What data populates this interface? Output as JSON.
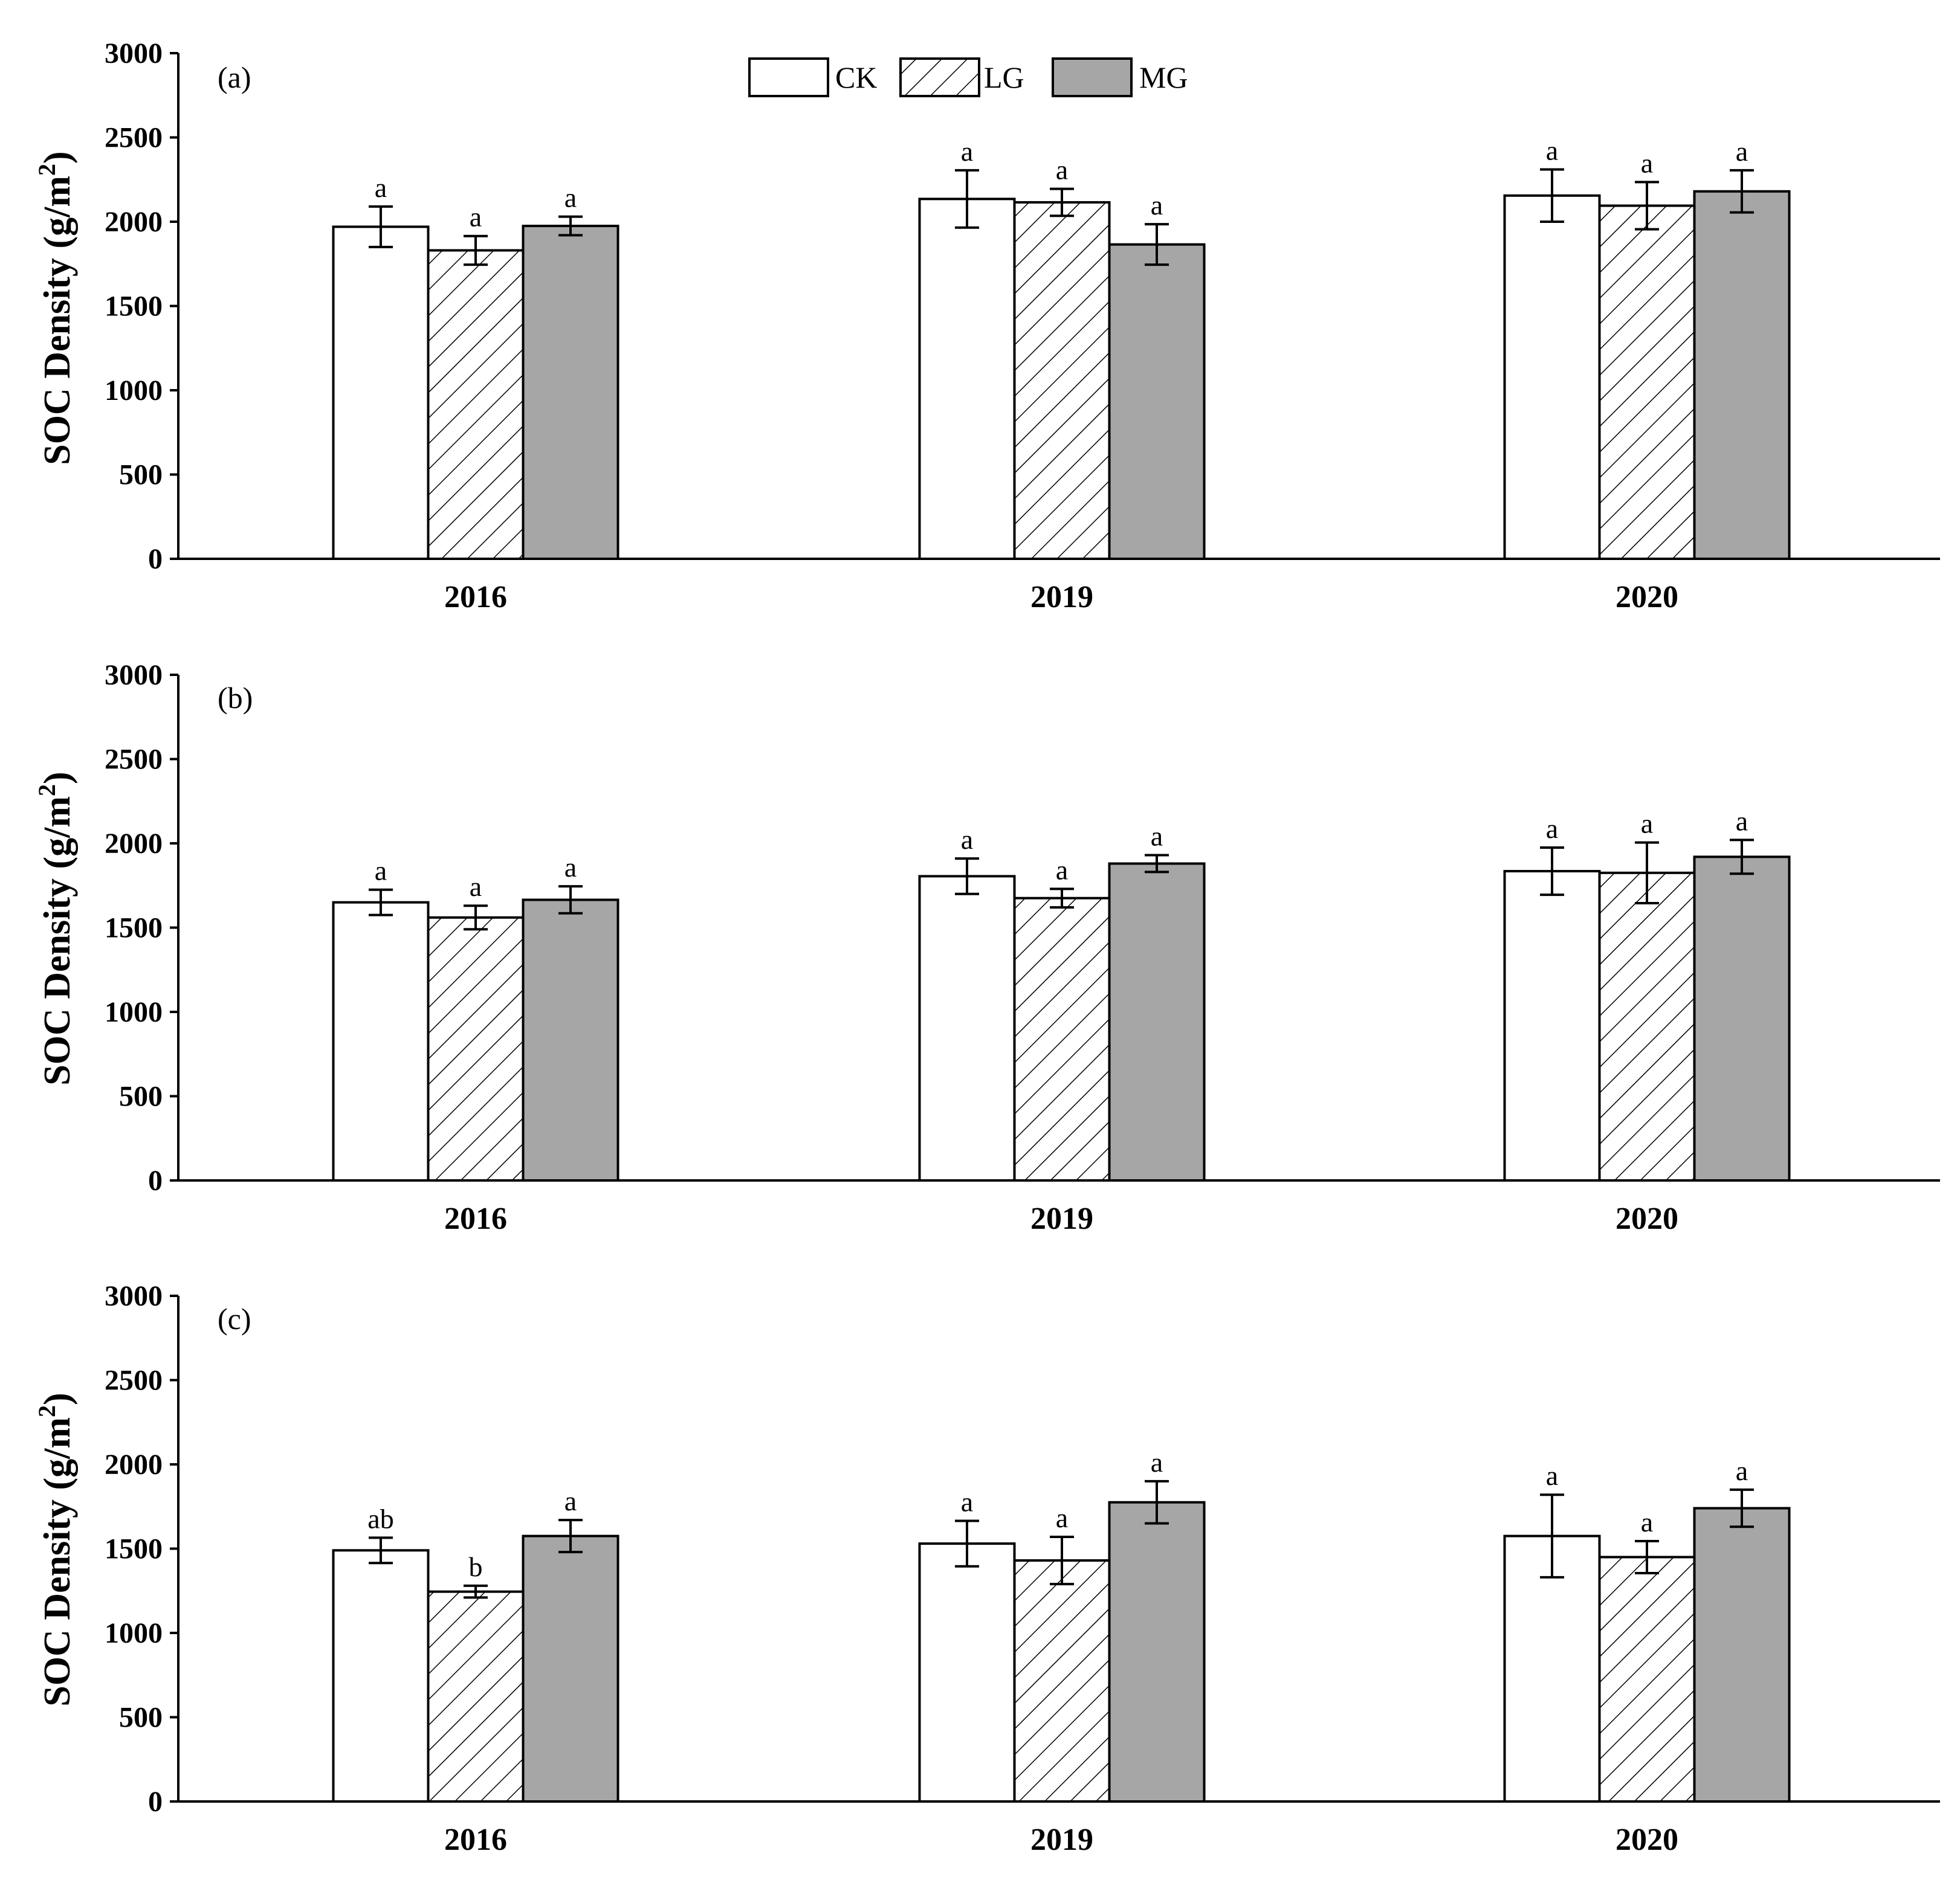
{
  "chart_data": [
    {
      "type": "bar",
      "panel_label": "(a)",
      "categories": [
        "2016",
        "2019",
        "2020"
      ],
      "ylabel_main": "SOC Density (g/m",
      "ylabel_sup": "2",
      "ylabel_close": ")",
      "ylim": [
        0,
        3000
      ],
      "yticks": [
        0,
        500,
        1000,
        1500,
        2000,
        2500,
        3000
      ],
      "yticks_labels": [
        "0",
        "500",
        "1000",
        "1500",
        "2000",
        "2500",
        "3000"
      ],
      "series": [
        {
          "name": "CK",
          "values": [
            1970,
            2135,
            2155
          ],
          "errors": [
            120,
            170,
            155
          ],
          "letters": [
            "a",
            "a",
            "a"
          ]
        },
        {
          "name": "LG",
          "values": [
            1830,
            2115,
            2095
          ],
          "errors": [
            85,
            80,
            140
          ],
          "letters": [
            "a",
            "a",
            "a"
          ]
        },
        {
          "name": "MG",
          "values": [
            1975,
            1865,
            2180
          ],
          "errors": [
            55,
            120,
            125
          ],
          "letters": [
            "a",
            "a",
            "a"
          ]
        }
      ]
    },
    {
      "type": "bar",
      "panel_label": "(b)",
      "categories": [
        "2016",
        "2019",
        "2020"
      ],
      "ylabel_main": "SOC Density (g/m",
      "ylabel_sup": "2",
      "ylabel_close": ")",
      "ylim": [
        0,
        3000
      ],
      "yticks": [
        0,
        500,
        1000,
        1500,
        2000,
        2500,
        3000
      ],
      "yticks_labels": [
        "0",
        "500",
        "1000",
        "1500",
        "2000",
        "2500",
        "3000"
      ],
      "series": [
        {
          "name": "CK",
          "values": [
            1650,
            1805,
            1835
          ],
          "errors": [
            75,
            105,
            140
          ],
          "letters": [
            "a",
            "a",
            "a"
          ]
        },
        {
          "name": "LG",
          "values": [
            1560,
            1675,
            1825
          ],
          "errors": [
            70,
            55,
            180
          ],
          "letters": [
            "a",
            "a",
            "a"
          ]
        },
        {
          "name": "MG",
          "values": [
            1665,
            1880,
            1920
          ],
          "errors": [
            80,
            50,
            100
          ],
          "letters": [
            "a",
            "a",
            "a"
          ]
        }
      ]
    },
    {
      "type": "bar",
      "panel_label": "(c)",
      "categories": [
        "2016",
        "2019",
        "2020"
      ],
      "ylabel_main": "SOC Density (g/m",
      "ylabel_sup": "2",
      "ylabel_close": ")",
      "ylim": [
        0,
        3000
      ],
      "yticks": [
        0,
        500,
        1000,
        1500,
        2000,
        2500,
        3000
      ],
      "yticks_labels": [
        "0",
        "500",
        "1000",
        "1500",
        "2000",
        "2500",
        "3000"
      ],
      "series": [
        {
          "name": "CK",
          "values": [
            1490,
            1530,
            1575
          ],
          "errors": [
            75,
            135,
            245
          ],
          "letters": [
            "ab",
            "a",
            "a"
          ]
        },
        {
          "name": "LG",
          "values": [
            1245,
            1430,
            1450
          ],
          "errors": [
            35,
            140,
            95
          ],
          "letters": [
            "b",
            "a",
            "a"
          ]
        },
        {
          "name": "MG",
          "values": [
            1575,
            1775,
            1740
          ],
          "errors": [
            95,
            125,
            110
          ],
          "letters": [
            "a",
            "a",
            "a"
          ]
        }
      ]
    }
  ],
  "legend": {
    "items": [
      {
        "label": "CK",
        "style": "open"
      },
      {
        "label": "LG",
        "style": "hatched"
      },
      {
        "label": "MG",
        "style": "gray"
      }
    ],
    "placement": "top-center"
  },
  "colors": {
    "ck_fill": "#ffffff",
    "mg_fill": "#a6a6a6",
    "stroke": "#000000",
    "background": "#ffffff"
  }
}
